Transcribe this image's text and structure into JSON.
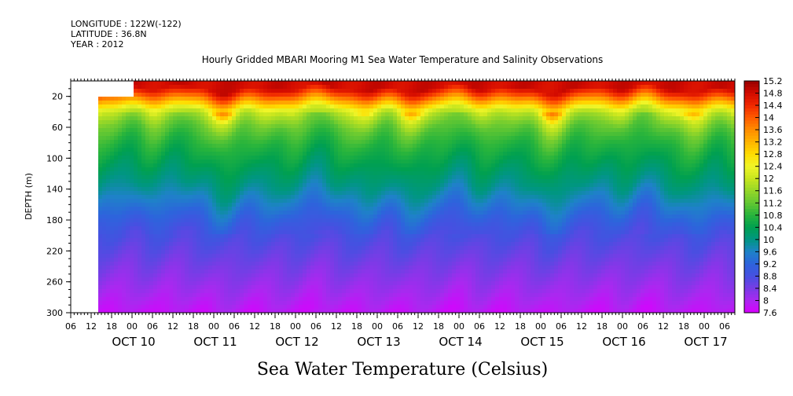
{
  "header": {
    "longitude": "LONGITUDE : 122W(-122)",
    "latitude": "LATITUDE : 36.8N",
    "year": "YEAR : 2012"
  },
  "chart_data": {
    "type": "heatmap",
    "title": "Hourly Gridded MBARI Mooring M1 Sea Water Temperature and Salinity Observations",
    "xlabel": "Sea Water Temperature (Celsius)",
    "ylabel": "DEPTH (m)",
    "xlim": [
      "2012-10-09T06:00",
      "2012-10-17T09:00"
    ],
    "ylim": [
      300,
      0
    ],
    "data_start": "2012-10-09T14:00",
    "y_ticks": [
      "20",
      "60",
      "100",
      "140",
      "180",
      "220",
      "260",
      "300"
    ],
    "x_hour_ticks": [
      "06",
      "12",
      "18",
      "00",
      "06",
      "12",
      "18",
      "00",
      "06",
      "12",
      "18",
      "00",
      "06",
      "12",
      "18",
      "00",
      "06",
      "12",
      "18",
      "00",
      "06",
      "12",
      "18",
      "00",
      "06",
      "12",
      "18",
      "00",
      "06",
      "12",
      "18",
      "00",
      "06"
    ],
    "x_day_labels": [
      "OCT 10",
      "OCT 11",
      "OCT 12",
      "OCT 13",
      "OCT 14",
      "OCT 15",
      "OCT 16",
      "OCT 17"
    ],
    "colorbar_labels": [
      "15.2",
      "14.8",
      "14.4",
      "14",
      "13.6",
      "13.2",
      "12.8",
      "12.4",
      "12",
      "11.6",
      "11.2",
      "10.8",
      "10.4",
      "10",
      "9.6",
      "9.2",
      "8.8",
      "8.4",
      "8",
      "7.6"
    ],
    "colorbar_range": [
      7.6,
      15.2
    ],
    "profile": {
      "depth": [
        10,
        20,
        30,
        40,
        60,
        80,
        100,
        120,
        140,
        160,
        180,
        200,
        220,
        240,
        260,
        280,
        300
      ],
      "temperature": [
        14.8,
        14.0,
        13.0,
        12.0,
        11.2,
        10.8,
        10.5,
        10.2,
        9.9,
        9.5,
        9.1,
        8.8,
        8.6,
        8.4,
        8.2,
        8.0,
        7.8
      ]
    }
  }
}
